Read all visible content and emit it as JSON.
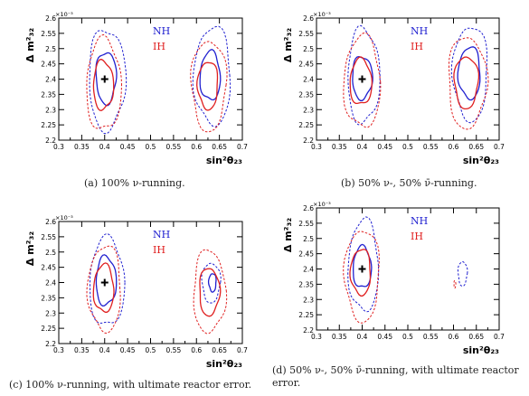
{
  "chart_data": [
    {
      "type": "contour",
      "panel": "a",
      "caption": "(a) 100% ν-running.",
      "xlabel": "sin²θ₂₃",
      "ylabel": "Δ m²₃₂",
      "y_multiplier": "×10⁻³",
      "xlim": [
        0.3,
        0.7
      ],
      "ylim": [
        2.2,
        2.6
      ],
      "x_ticks": [
        "0.3",
        "0.35",
        "0.4",
        "0.45",
        "0.5",
        "0.55",
        "0.6",
        "0.65",
        "0.7"
      ],
      "y_ticks": [
        "2.2",
        "2.25",
        "2.3",
        "2.35",
        "2.4",
        "2.45",
        "2.5",
        "2.55",
        "2.6"
      ],
      "legend": [
        {
          "label": "NH",
          "color": "#2020d0"
        },
        {
          "label": "IH",
          "color": "#e02020"
        }
      ],
      "true_point": [
        0.4,
        2.4
      ],
      "contours": [
        {
          "hierarchy": "NH",
          "style": "solid",
          "cx": 0.403,
          "cy": 2.405,
          "rx": 0.022,
          "ry": 0.085
        },
        {
          "hierarchy": "NH",
          "style": "dashed",
          "cx": 0.405,
          "cy": 2.4,
          "rx": 0.04,
          "ry": 0.165
        },
        {
          "hierarchy": "IH",
          "style": "solid",
          "cx": 0.397,
          "cy": 2.38,
          "rx": 0.022,
          "ry": 0.08
        },
        {
          "hierarchy": "IH",
          "style": "dashed",
          "cx": 0.398,
          "cy": 2.38,
          "rx": 0.038,
          "ry": 0.15
        },
        {
          "hierarchy": "NH",
          "style": "solid",
          "cx": 0.63,
          "cy": 2.41,
          "rx": 0.022,
          "ry": 0.08
        },
        {
          "hierarchy": "NH",
          "style": "dashed",
          "cx": 0.635,
          "cy": 2.41,
          "rx": 0.04,
          "ry": 0.16
        },
        {
          "hierarchy": "IH",
          "style": "solid",
          "cx": 0.625,
          "cy": 2.38,
          "rx": 0.022,
          "ry": 0.078
        },
        {
          "hierarchy": "IH",
          "style": "dashed",
          "cx": 0.627,
          "cy": 2.38,
          "rx": 0.038,
          "ry": 0.148
        }
      ]
    },
    {
      "type": "contour",
      "panel": "b",
      "caption": "(b) 50% ν-, 50% ν̄-running.",
      "xlabel": "sin²θ₂₃",
      "ylabel": "Δ m²₃₂",
      "y_multiplier": "×10⁻³",
      "xlim": [
        0.3,
        0.7
      ],
      "ylim": [
        2.2,
        2.6
      ],
      "x_ticks": [
        "0.3",
        "0.35",
        "0.4",
        "0.45",
        "0.5",
        "0.55",
        "0.6",
        "0.65",
        "0.7"
      ],
      "y_ticks": [
        "2.2",
        "2.25",
        "2.3",
        "2.35",
        "2.4",
        "2.45",
        "2.5",
        "2.55",
        "2.6"
      ],
      "legend": [
        {
          "label": "NH",
          "color": "#2020d0"
        },
        {
          "label": "IH",
          "color": "#e02020"
        }
      ],
      "true_point": [
        0.4,
        2.4
      ],
      "contours": [
        {
          "hierarchy": "NH",
          "style": "solid",
          "cx": 0.4,
          "cy": 2.405,
          "rx": 0.022,
          "ry": 0.07
        },
        {
          "hierarchy": "NH",
          "style": "dashed",
          "cx": 0.403,
          "cy": 2.41,
          "rx": 0.035,
          "ry": 0.155
        },
        {
          "hierarchy": "IH",
          "style": "solid",
          "cx": 0.397,
          "cy": 2.39,
          "rx": 0.024,
          "ry": 0.075
        },
        {
          "hierarchy": "IH",
          "style": "dashed",
          "cx": 0.4,
          "cy": 2.39,
          "rx": 0.04,
          "ry": 0.15
        },
        {
          "hierarchy": "NH",
          "style": "solid",
          "cx": 0.635,
          "cy": 2.42,
          "rx": 0.024,
          "ry": 0.085
        },
        {
          "hierarchy": "NH",
          "style": "dashed",
          "cx": 0.637,
          "cy": 2.42,
          "rx": 0.038,
          "ry": 0.155
        },
        {
          "hierarchy": "IH",
          "style": "solid",
          "cx": 0.628,
          "cy": 2.39,
          "rx": 0.026,
          "ry": 0.085
        },
        {
          "hierarchy": "IH",
          "style": "dashed",
          "cx": 0.63,
          "cy": 2.39,
          "rx": 0.042,
          "ry": 0.15
        }
      ]
    },
    {
      "type": "contour",
      "panel": "c",
      "caption": "(c) 100% ν-running, with ultimate reactor error.",
      "xlabel": "sin²θ₂₃",
      "ylabel": "Δ m²₃₂",
      "y_multiplier": "×10⁻³",
      "xlim": [
        0.3,
        0.7
      ],
      "ylim": [
        2.2,
        2.6
      ],
      "x_ticks": [
        "0.3",
        "0.35",
        "0.4",
        "0.45",
        "0.5",
        "0.55",
        "0.6",
        "0.65",
        "0.7"
      ],
      "y_ticks": [
        "2.2",
        "2.25",
        "2.3",
        "2.35",
        "2.4",
        "2.45",
        "2.5",
        "2.55",
        "2.6"
      ],
      "legend": [
        {
          "label": "NH",
          "color": "#2020d0"
        },
        {
          "label": "IH",
          "color": "#e02020"
        }
      ],
      "true_point": [
        0.4,
        2.4
      ],
      "contours": [
        {
          "hierarchy": "NH",
          "style": "solid",
          "cx": 0.403,
          "cy": 2.405,
          "rx": 0.022,
          "ry": 0.08
        },
        {
          "hierarchy": "NH",
          "style": "dashed",
          "cx": 0.405,
          "cy": 2.4,
          "rx": 0.038,
          "ry": 0.145
        },
        {
          "hierarchy": "IH",
          "style": "solid",
          "cx": 0.398,
          "cy": 2.38,
          "rx": 0.022,
          "ry": 0.078
        },
        {
          "hierarchy": "IH",
          "style": "dashed",
          "cx": 0.4,
          "cy": 2.38,
          "rx": 0.036,
          "ry": 0.14
        },
        {
          "hierarchy": "NH",
          "style": "solid",
          "cx": 0.635,
          "cy": 2.4,
          "rx": 0.008,
          "ry": 0.03
        },
        {
          "hierarchy": "NH",
          "style": "dashed",
          "cx": 0.632,
          "cy": 2.4,
          "rx": 0.02,
          "ry": 0.065
        },
        {
          "hierarchy": "IH",
          "style": "solid",
          "cx": 0.628,
          "cy": 2.37,
          "rx": 0.022,
          "ry": 0.078
        },
        {
          "hierarchy": "IH",
          "style": "dashed",
          "cx": 0.628,
          "cy": 2.37,
          "rx": 0.035,
          "ry": 0.135
        }
      ]
    },
    {
      "type": "contour",
      "panel": "d",
      "caption": "(d) 50% ν-, 50% ν̄-running, with ultimate reactor error.",
      "xlabel": "sin²θ₂₃",
      "ylabel": "Δ m²₃₂",
      "y_multiplier": "×10⁻³",
      "xlim": [
        0.3,
        0.7
      ],
      "ylim": [
        2.2,
        2.6
      ],
      "x_ticks": [
        "0.3",
        "0.35",
        "0.4",
        "0.45",
        "0.5",
        "0.55",
        "0.6",
        "0.65",
        "0.7"
      ],
      "y_ticks": [
        "2.2",
        "2.25",
        "2.3",
        "2.35",
        "2.4",
        "2.45",
        "2.5",
        "2.55",
        "2.6"
      ],
      "legend": [
        {
          "label": "NH",
          "color": "#2020d0"
        },
        {
          "label": "IH",
          "color": "#e02020"
        }
      ],
      "true_point": [
        0.4,
        2.4
      ],
      "contours": [
        {
          "hierarchy": "NH",
          "style": "solid",
          "cx": 0.4,
          "cy": 2.405,
          "rx": 0.02,
          "ry": 0.068
        },
        {
          "hierarchy": "NH",
          "style": "dashed",
          "cx": 0.403,
          "cy": 2.41,
          "rx": 0.033,
          "ry": 0.15
        },
        {
          "hierarchy": "IH",
          "style": "solid",
          "cx": 0.397,
          "cy": 2.39,
          "rx": 0.022,
          "ry": 0.075
        },
        {
          "hierarchy": "IH",
          "style": "dashed",
          "cx": 0.4,
          "cy": 2.38,
          "rx": 0.038,
          "ry": 0.15
        },
        {
          "hierarchy": "NH",
          "style": "dashed",
          "cx": 0.62,
          "cy": 2.385,
          "rx": 0.01,
          "ry": 0.04
        },
        {
          "hierarchy": "IH",
          "style": "dashed",
          "cx": 0.603,
          "cy": 2.35,
          "rx": 0.002,
          "ry": 0.012
        }
      ]
    }
  ]
}
